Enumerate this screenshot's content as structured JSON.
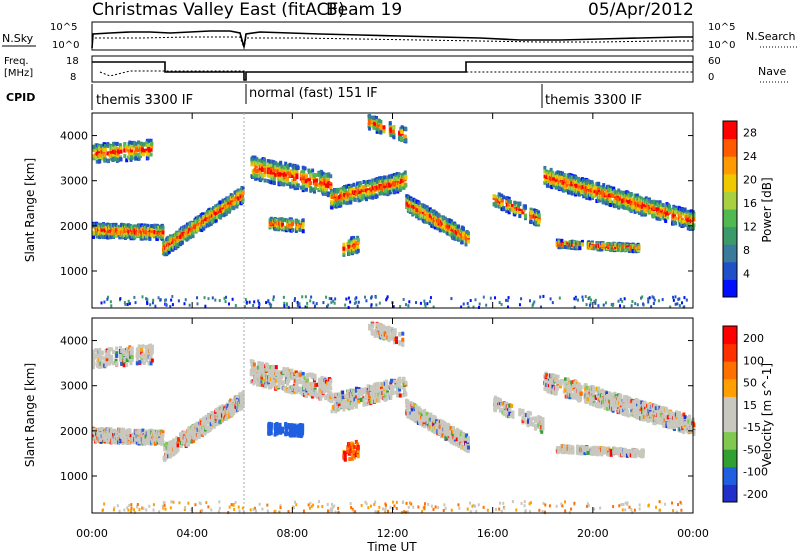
{
  "header": {
    "title": "Christmas Valley East (fitACF)",
    "beam": "Beam 19",
    "date": "05/Apr/2012"
  },
  "top_panels": {
    "nsky_label": "N.Sky",
    "nsearch_label": "N.Search",
    "left_ticks": [
      "10^5",
      "10^0"
    ],
    "right_ticks": [
      "10^5",
      "10^0"
    ],
    "freq_label_1": "Freq.",
    "freq_label_2": "[MHz]",
    "freq_ticks": [
      "18",
      "8"
    ],
    "nave_label": "Nave",
    "nave_ticks": [
      "60",
      "0"
    ],
    "cpid_label": "CPID",
    "cpid_segments": [
      "themis 3300 IF",
      "normal (fast) 151 IF",
      "themis 3300 IF"
    ]
  },
  "colors": {
    "power_scale": [
      "#0010ff",
      "#2050c8",
      "#3a7a9a",
      "#3a9a6a",
      "#52b852",
      "#a8d040",
      "#f0c800",
      "#ff9a00",
      "#ff5a00",
      "#ff0000"
    ],
    "velocity_scale": [
      "#2030c8",
      "#2060e0",
      "#30a030",
      "#80c850",
      "#c8c8c0",
      "#c8c8c0",
      "#ffa000",
      "#ff7000",
      "#ff3000",
      "#ff0000"
    ]
  },
  "chart_data": [
    {
      "type": "heatmap",
      "name": "power",
      "ylabel": "Slant Range [km]",
      "yticks": [
        "4000",
        "3000",
        "2000",
        "1000"
      ],
      "ylim": [
        180,
        4500
      ],
      "colorbar_label": "Power [dB]",
      "colorbar_ticks": [
        "28",
        "24",
        "20",
        "16",
        "12",
        "8",
        "4"
      ],
      "colorbar_range": [
        0,
        30
      ]
    },
    {
      "type": "heatmap",
      "name": "velocity",
      "ylabel": "Slant Range [km]",
      "yticks": [
        "4000",
        "3000",
        "2000",
        "1000"
      ],
      "ylim": [
        180,
        4500
      ],
      "colorbar_label": "Velocity [m s^-1]",
      "colorbar_ticks": [
        "200",
        "100",
        "50",
        "15",
        "-15",
        "-50",
        "-100",
        "-200"
      ],
      "xlabel": "Time UT",
      "xticks": [
        "00:00",
        "04:00",
        "08:00",
        "12:00",
        "16:00",
        "20:00",
        "00:00"
      ],
      "xlim": [
        0,
        24
      ]
    }
  ]
}
